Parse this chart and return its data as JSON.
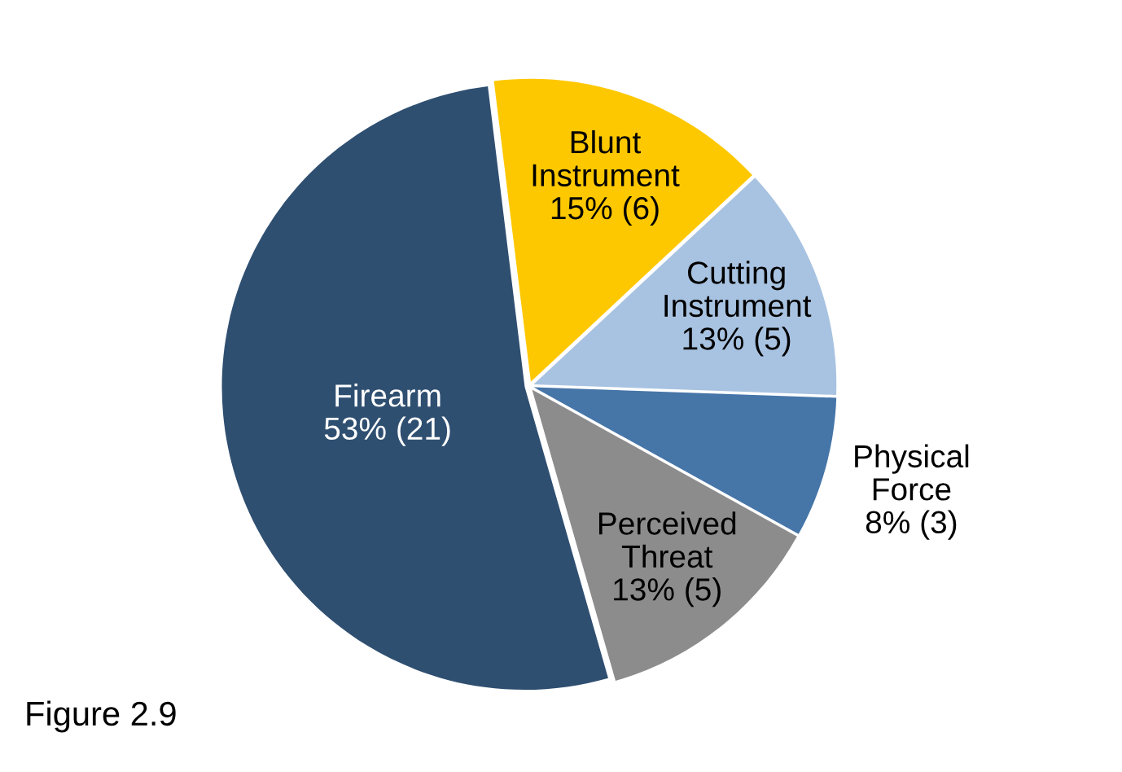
{
  "chart_data": {
    "type": "pie",
    "categories": [
      "Blunt Instrument",
      "Cutting Instrument",
      "Physical Force",
      "Perceived Threat",
      "Firearm"
    ],
    "values": [
      6,
      5,
      3,
      5,
      21
    ],
    "value_labels": [
      "15% (6)",
      "13% (5)",
      "8% (3)",
      "13% (5)",
      "53% (21)"
    ],
    "colors": [
      "#fec800",
      "#a8c3e1",
      "#4675a8",
      "#8c8c8c",
      "#2f4f71"
    ],
    "annotations": [
      "Figure 2.9"
    ],
    "legend": false
  }
}
